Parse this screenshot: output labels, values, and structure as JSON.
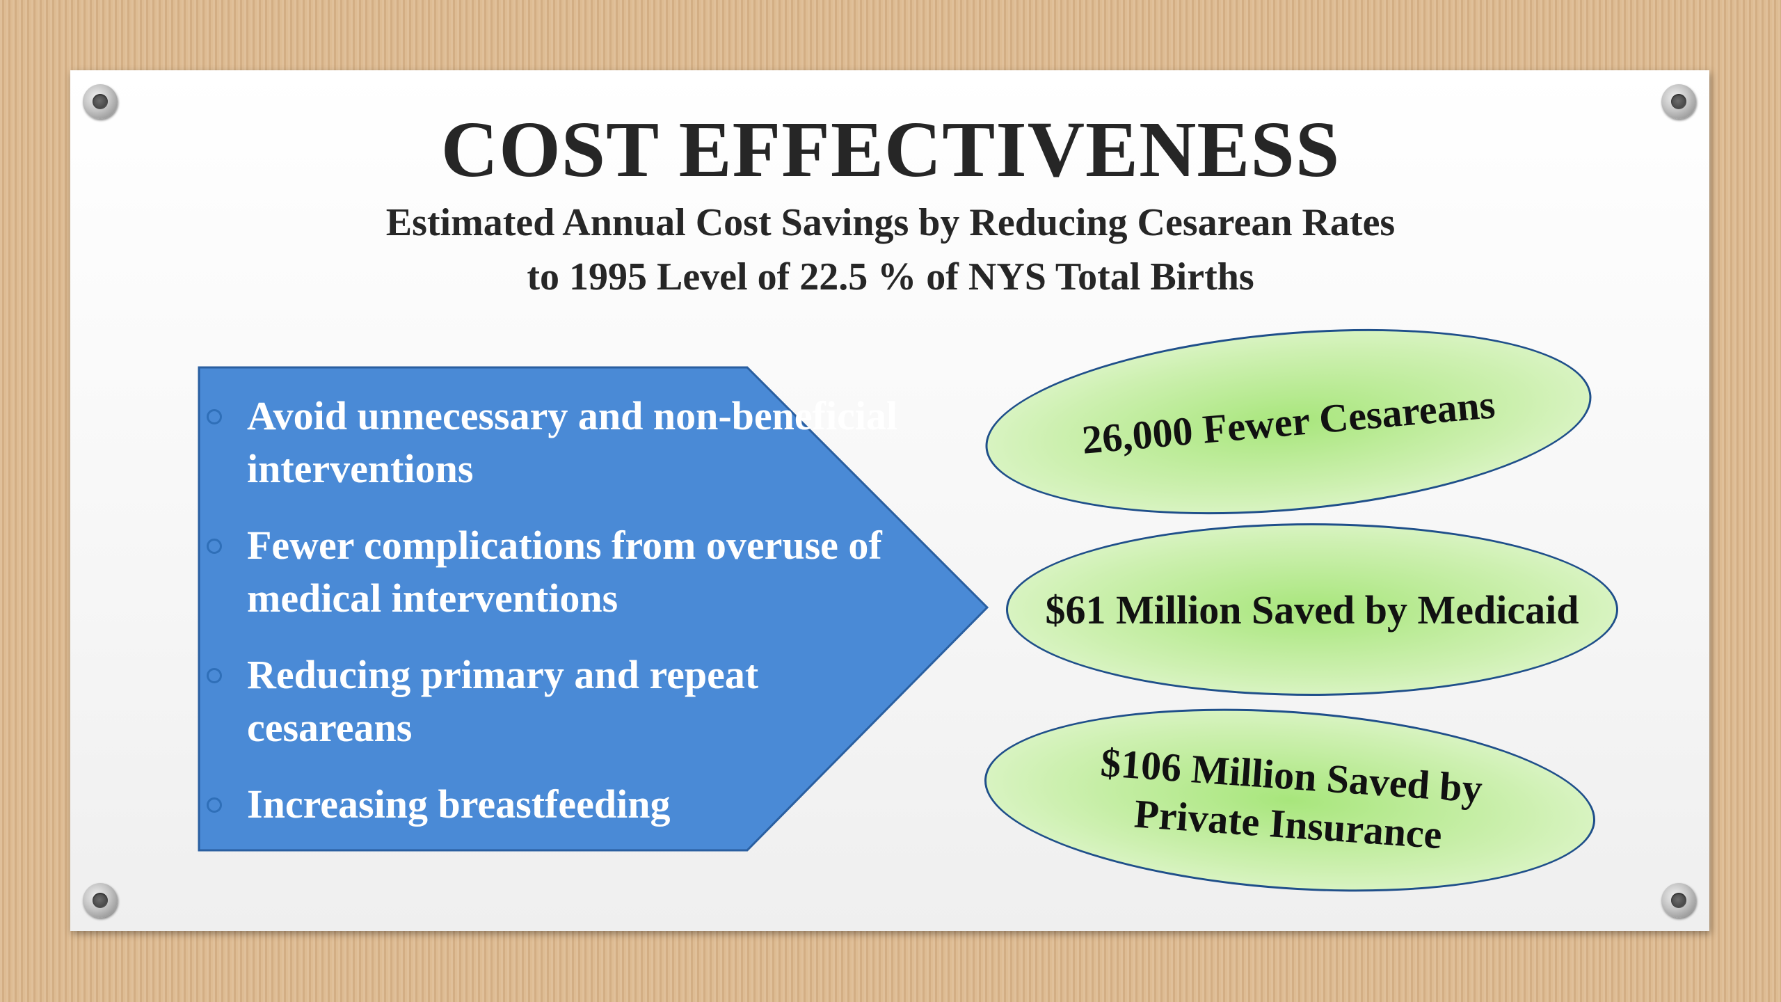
{
  "slide": {
    "title": "COST EFFECTIVENESS",
    "subtitle_line1": "Estimated Annual Cost Savings by Reducing Cesarean Rates",
    "subtitle_line2": "to 1995 Level of 22.5 % of NYS Total Births"
  },
  "arrow_box": {
    "color": "#4a8ad6",
    "bullets": [
      "Avoid unnecessary and non-beneficial interventions",
      "Fewer complications from overuse of medical interventions",
      "Reducing primary and repeat cesareans",
      "Increasing breastfeeding"
    ]
  },
  "ellipses": {
    "fill_color": "#b6ec8c",
    "border_color": "#1f4f8a",
    "items": [
      {
        "text": "26,000 Fewer Cesareans"
      },
      {
        "text": "$61 Million Saved by Medicaid"
      },
      {
        "line1": "$106 Million Saved by",
        "line2": "Private Insurance"
      }
    ]
  },
  "icons": [
    "screw-icon",
    "bullet-circle-icon"
  ]
}
